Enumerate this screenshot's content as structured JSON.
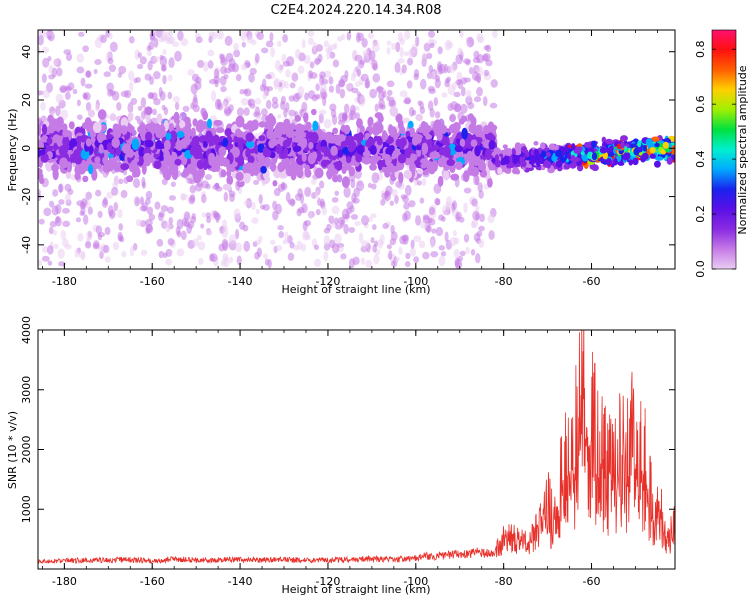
{
  "title": "C2E4.2024.220.14.34.R08",
  "colors": {
    "snr_line": "#e8302a",
    "axis": "#000000",
    "colormap": [
      "#ebcdf3",
      "#c57be6",
      "#8a2be2",
      "#5a10e6",
      "#1a22ee",
      "#00aaff",
      "#00f0d0",
      "#00e040",
      "#a0f000",
      "#ffd000",
      "#ff6000",
      "#ff1010",
      "#ff1070"
    ]
  },
  "chart_data": [
    {
      "type": "heatmap",
      "title": "",
      "xlabel": "Height of straight line (km)",
      "ylabel": "Frequency (Hz)",
      "xlim": [
        -186,
        -41
      ],
      "ylim": [
        -50,
        49
      ],
      "x_ticks": [
        -180,
        -160,
        -140,
        -120,
        -100,
        -80,
        -60
      ],
      "y_ticks": [
        -40,
        -20,
        0,
        20,
        40
      ],
      "colorbar": {
        "label": "Normalized spectral amplitude",
        "range": [
          0.0,
          0.87
        ],
        "ticks": [
          "0.0",
          "0.2",
          "0.4",
          "0.6",
          "0.8"
        ]
      },
      "features": [
        {
          "x_range": [
            -186,
            -82
          ],
          "center_frequency_hz": 0,
          "core_halfwidth_hz": 8,
          "typical_amplitude": 0.18,
          "scatter_halfwidth_hz": 48
        },
        {
          "x_range": [
            -82,
            -41
          ],
          "center_frequency_hz": [
            -5,
            0
          ],
          "core_halfwidth_hz": 4,
          "typical_amplitude": 0.6,
          "scatter_halfwidth_hz": 4
        }
      ]
    },
    {
      "type": "line",
      "title": "",
      "xlabel": "Height of straight line (km)",
      "ylabel": "SNR (10 * v/v)",
      "xlim": [
        -186,
        -41
      ],
      "ylim": [
        0,
        4000
      ],
      "x_ticks": [
        -180,
        -160,
        -140,
        -120,
        -100,
        -80,
        -60
      ],
      "y_ticks": [
        1000,
        2000,
        3000,
        4000
      ],
      "series": [
        {
          "x": [
            -186,
            -180,
            -175,
            -170,
            -165,
            -160,
            -155,
            -150,
            -145,
            -140,
            -135,
            -130,
            -125,
            -120,
            -115,
            -110,
            -105,
            -100,
            -98,
            -96,
            -94,
            -92,
            -90,
            -88,
            -86,
            -84,
            -82,
            -80,
            -78,
            -76,
            -74,
            -72,
            -70,
            -68,
            -66,
            -64,
            -63,
            -62,
            -61,
            -60,
            -59,
            -58,
            -56,
            -54,
            -52,
            -50,
            -48,
            -46,
            -44,
            -42,
            -41
          ],
          "values": [
            130,
            150,
            160,
            160,
            170,
            140,
            180,
            160,
            170,
            170,
            160,
            170,
            160,
            160,
            170,
            180,
            170,
            190,
            230,
            220,
            240,
            260,
            270,
            280,
            300,
            280,
            320,
            550,
            600,
            500,
            500,
            800,
            1200,
            1600,
            2000,
            2500,
            3000,
            3700,
            3500,
            2900,
            2600,
            2300,
            2000,
            2200,
            2400,
            2800,
            2100,
            1400,
            1100,
            700,
            850
          ]
        }
      ]
    }
  ]
}
